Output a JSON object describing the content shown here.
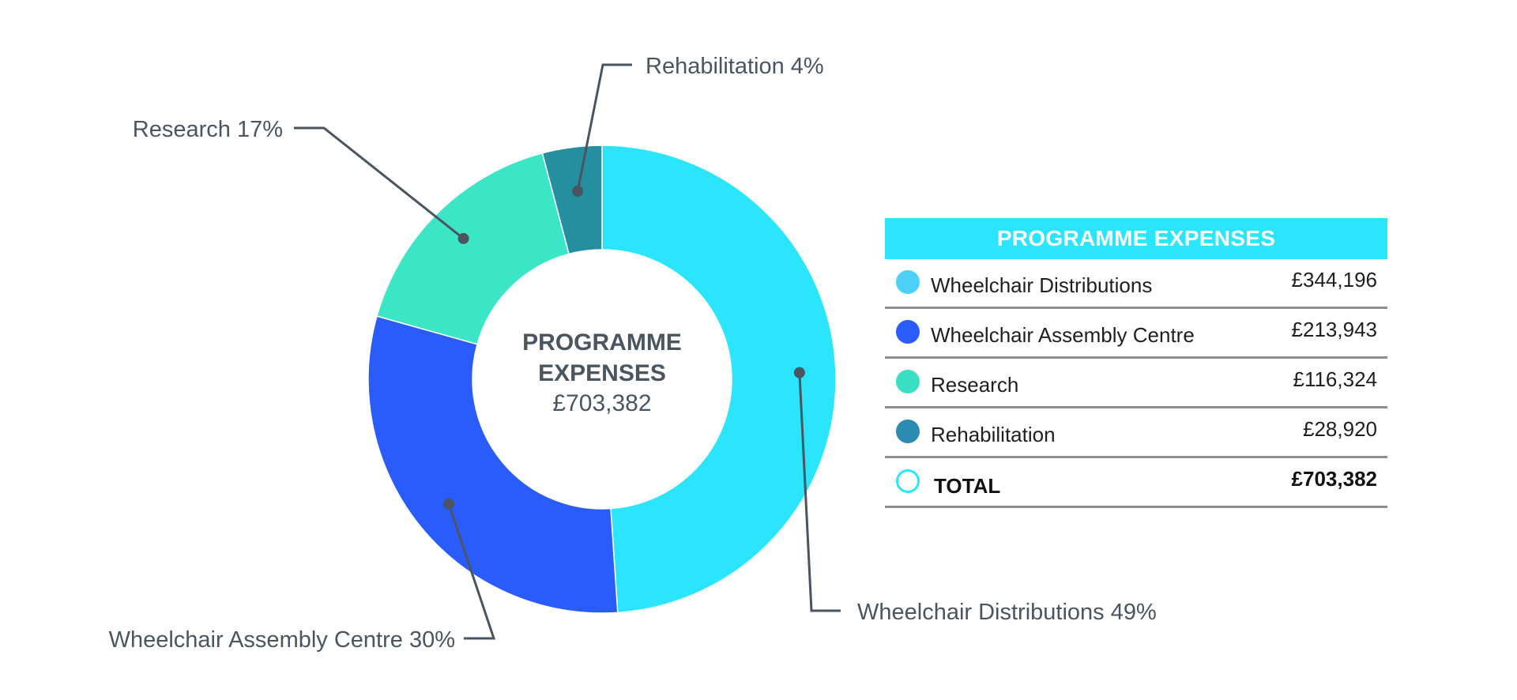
{
  "chart_data": {
    "type": "pie",
    "title": "PROGRAMME EXPENSES",
    "total": "£703,382",
    "start_angle_deg": 0,
    "slices": [
      {
        "label": "Wheelchair Distributions",
        "percent": 49,
        "value": 344196,
        "amount": "£344,196",
        "callout": "Wheelchair Distributions 49%",
        "color": "#2ae5fb"
      },
      {
        "label": "Wheelchair Assembly Centre",
        "percent": 30,
        "value": 213943,
        "amount": "£213,943",
        "callout": "Wheelchair Assembly Centre 30%",
        "color": "#2a5cfc"
      },
      {
        "label": "Research",
        "percent": 17,
        "value": 116324,
        "amount": "£116,324",
        "callout": "Research 17%",
        "color": "#3be6c6"
      },
      {
        "label": "Rehabilitation",
        "percent": 4,
        "value": 28920,
        "amount": "£28,920",
        "callout": "Rehabilitation 4%",
        "color": "#248f9e"
      }
    ]
  },
  "center": {
    "title_line1": "PROGRAMME",
    "title_line2": "EXPENSES",
    "total": "£703,382"
  },
  "legend": {
    "header": "PROGRAMME EXPENSES",
    "header_color": "#2ae5fb",
    "rows": [
      {
        "label": "Wheelchair Distributions",
        "value": "£344,196",
        "dot_color": "#4dd0f8"
      },
      {
        "label": "Wheelchair Assembly Centre",
        "value": "£213,943",
        "dot_color": "#2a5cfc"
      },
      {
        "label": "Research",
        "value": "£116,324",
        "dot_color": "#3be0c4"
      },
      {
        "label": "Rehabilitation",
        "value": "£28,920",
        "dot_color": "#2c8bb0"
      }
    ],
    "total": {
      "label": "TOTAL",
      "value": "£703,382",
      "dot_color": "#2ae5fb"
    }
  },
  "colors": {
    "callout_line": "#4a5560",
    "text": "#4a5560",
    "divider": "#8f8f8f"
  }
}
